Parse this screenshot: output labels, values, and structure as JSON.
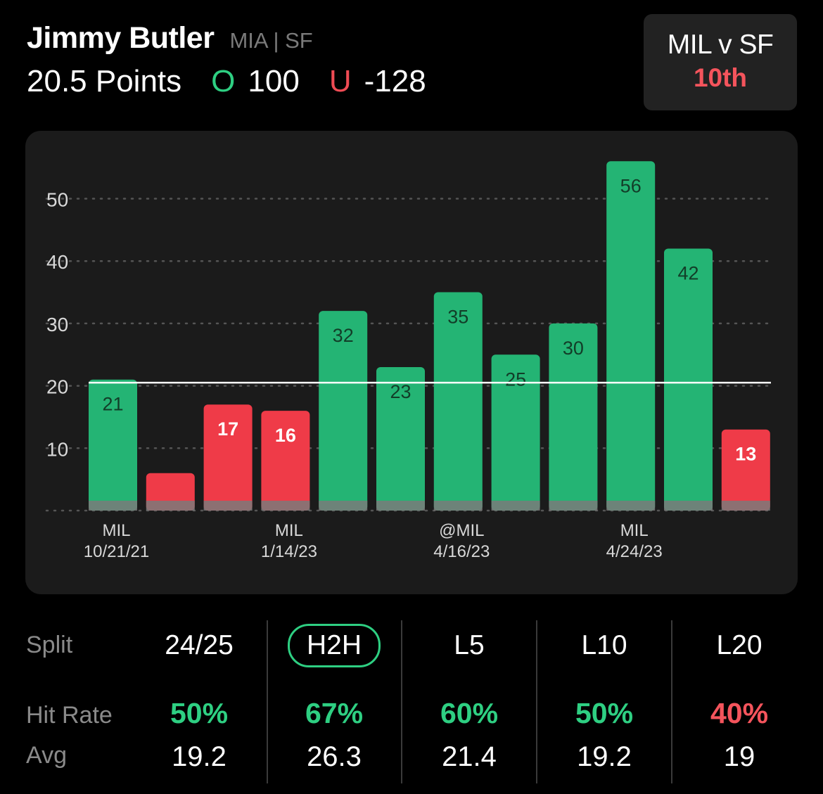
{
  "player": {
    "name": "Jimmy Butler",
    "teams": "MIA | SF"
  },
  "line": {
    "value": "20.5 Points",
    "over_symbol": "O",
    "over_odds": "100",
    "under_symbol": "U",
    "under_odds": "-128"
  },
  "matchup": {
    "title": "MIL v SF",
    "rank": "10th"
  },
  "colors": {
    "over": "#24b474",
    "under": "#ef3b48",
    "rank": "#f4545c",
    "active_outline": "#2ecf82"
  },
  "chart_data": {
    "type": "bar",
    "title": "",
    "xlabel": "",
    "ylabel": "",
    "ylim": [
      0,
      56
    ],
    "yticks": [
      10,
      20,
      30,
      40,
      50
    ],
    "grid": true,
    "threshold": 20.5,
    "values": [
      21,
      6,
      17,
      16,
      32,
      23,
      35,
      25,
      30,
      56,
      42,
      13
    ],
    "bar_labels": [
      "21",
      "",
      "17",
      "16",
      "32",
      "23",
      "35",
      "25",
      "30",
      "56",
      "42",
      "13"
    ],
    "x_labels": [
      {
        "index": 0,
        "team": "MIL",
        "date": "10/21/21"
      },
      {
        "index": 3,
        "team": "MIL",
        "date": "1/14/23"
      },
      {
        "index": 6,
        "team": "@MIL",
        "date": "4/16/23"
      },
      {
        "index": 9,
        "team": "MIL",
        "date": "4/24/23"
      }
    ]
  },
  "stats": {
    "row_labels": {
      "split": "Split",
      "hit_rate": "Hit Rate",
      "avg": "Avg"
    },
    "columns": [
      {
        "split": "24/25",
        "hit_rate": "50%",
        "avg": "19.2",
        "tone": "green",
        "active": false
      },
      {
        "split": "H2H",
        "hit_rate": "67%",
        "avg": "26.3",
        "tone": "green",
        "active": true
      },
      {
        "split": "L5",
        "hit_rate": "60%",
        "avg": "21.4",
        "tone": "green",
        "active": false
      },
      {
        "split": "L10",
        "hit_rate": "50%",
        "avg": "19.2",
        "tone": "green",
        "active": false
      },
      {
        "split": "L20",
        "hit_rate": "40%",
        "avg": "19",
        "tone": "red",
        "active": false
      }
    ]
  }
}
